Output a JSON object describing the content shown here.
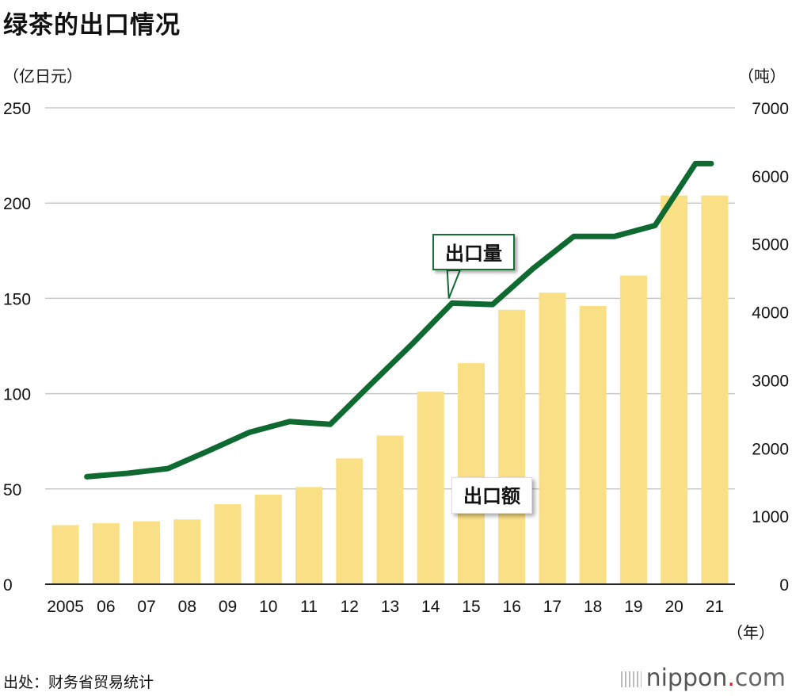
{
  "title": "绿茶的出口情况",
  "left_unit": "（亿日元）",
  "right_unit": "（吨）",
  "year_unit": "（年）",
  "source": "出处：财务省贸易统计",
  "brand": {
    "name": "nippon",
    "dot": ".",
    "suffix": "com"
  },
  "callouts": {
    "volume": "出口量",
    "value": "出口额"
  },
  "colors": {
    "bar": "#f9df86",
    "line": "#0f6a32",
    "grid": "#c8c8c8",
    "axis": "#222222"
  },
  "chart_data": {
    "type": "bar+line",
    "title": "绿茶的出口情况",
    "categories": [
      "2005",
      "06",
      "07",
      "08",
      "09",
      "10",
      "11",
      "12",
      "13",
      "14",
      "15",
      "16",
      "17",
      "18",
      "19",
      "20",
      "21"
    ],
    "series": [
      {
        "name": "出口额",
        "type": "bar",
        "axis": "left",
        "unit": "亿日元",
        "values": [
          31,
          32,
          33,
          34,
          42,
          47,
          51,
          66,
          78,
          101,
          116,
          144,
          153,
          146,
          162,
          204,
          204
        ]
      },
      {
        "name": "出口量",
        "type": "line",
        "axis": "right",
        "unit": "吨",
        "values": [
          1580,
          1630,
          1700,
          1960,
          2230,
          2390,
          2350,
          2940,
          3520,
          4130,
          4110,
          4640,
          5110,
          5110,
          5270,
          6180,
          6180
        ]
      }
    ],
    "left_axis": {
      "ylim": [
        0,
        250
      ],
      "ticks": [
        "0",
        "50",
        "100",
        "150",
        "200",
        "250"
      ]
    },
    "right_axis": {
      "ylim": [
        0,
        7000
      ],
      "ticks": [
        "0",
        "1000",
        "2000",
        "3000",
        "4000",
        "5000",
        "6000",
        "7000"
      ]
    },
    "grid": true
  }
}
